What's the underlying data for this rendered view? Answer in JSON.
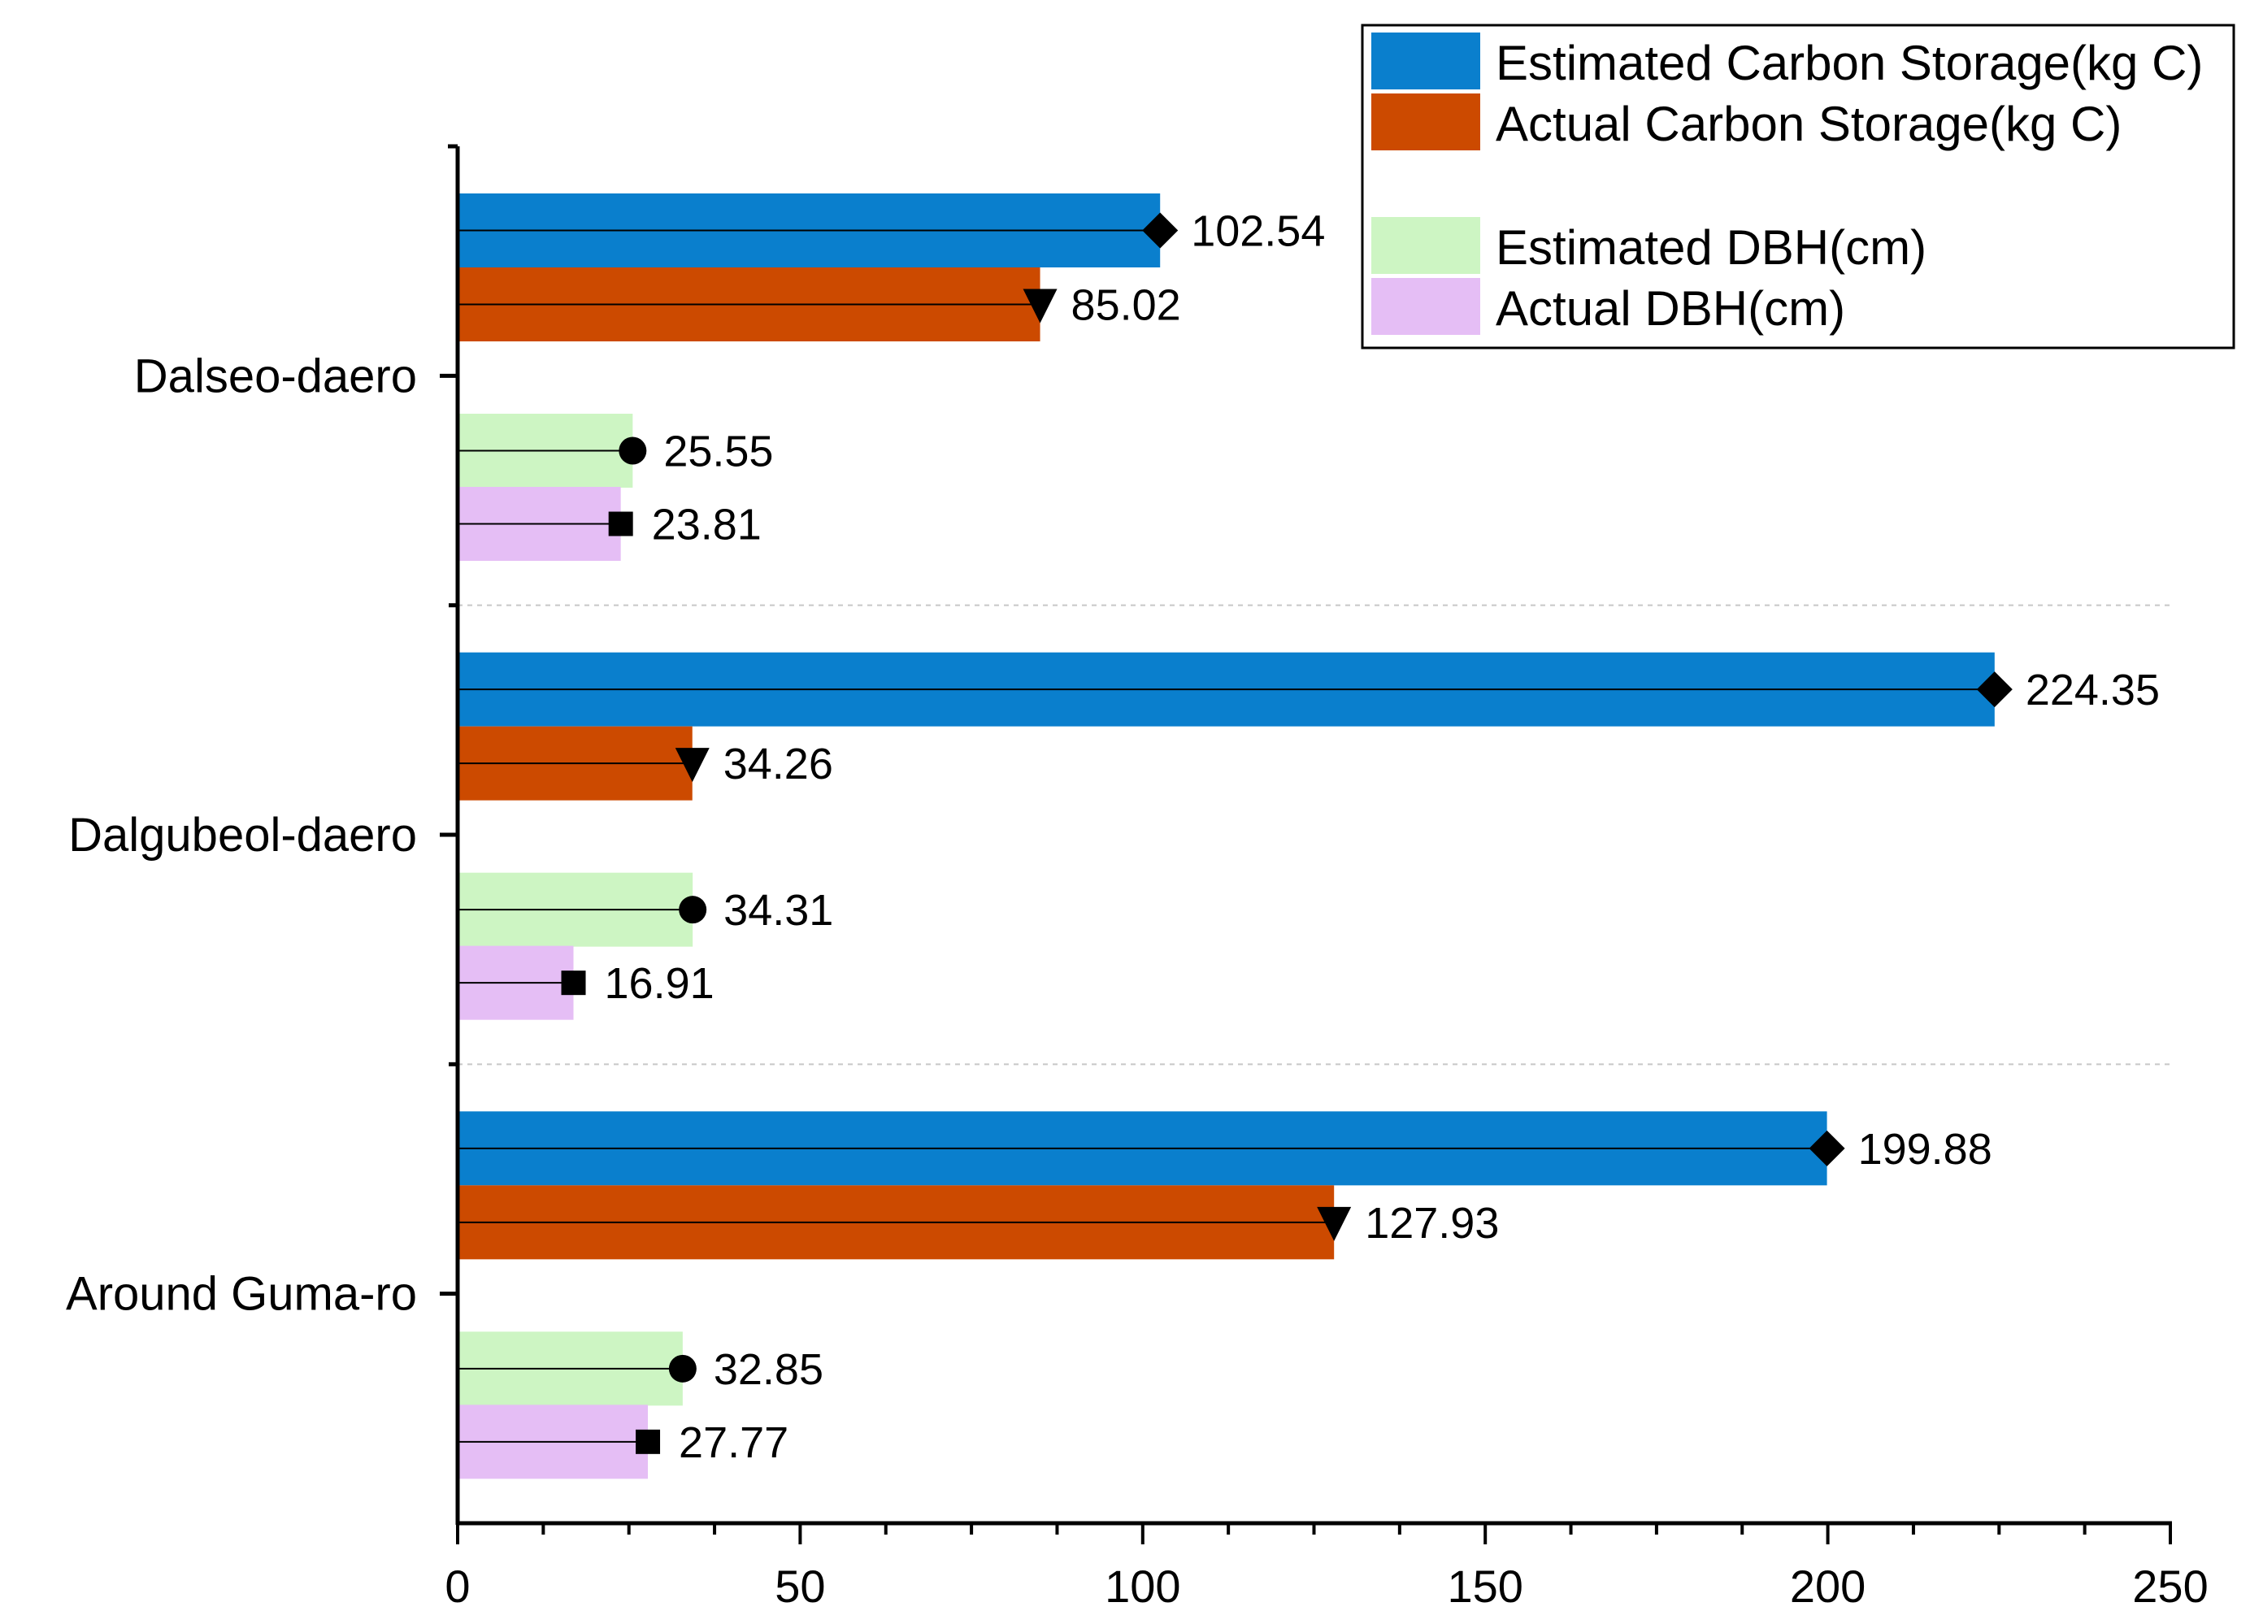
{
  "chart_data": {
    "type": "bar",
    "orientation": "horizontal",
    "title": "",
    "xlabel": "",
    "ylabel": "",
    "xlim": [
      0,
      250
    ],
    "x_ticks": [
      0,
      50,
      100,
      150,
      200,
      250
    ],
    "grid": false,
    "category_separators": "dashed",
    "categories": [
      "Dalseo-daero",
      "Dalgubeol-daero",
      "Around Guma-ro"
    ],
    "series": [
      {
        "name": "Estimated Carbon Storage(kg C)",
        "color": "#0a7fcd",
        "marker": "diamond",
        "values": [
          102.54,
          224.35,
          199.88
        ],
        "labels": [
          "102.54",
          "224.35",
          "199.88"
        ]
      },
      {
        "name": "Actual Carbon Storage(kg C)",
        "color": "#cc4a00",
        "marker": "triangle-down",
        "values": [
          85.02,
          34.26,
          127.93
        ],
        "labels": [
          "85.02",
          "34.26",
          "127.93"
        ]
      },
      {
        "name": "Estimated DBH(cm)",
        "color": "#cdf5c3",
        "marker": "circle",
        "values": [
          25.55,
          34.31,
          32.85
        ],
        "labels": [
          "25.55",
          "34.31",
          "32.85"
        ]
      },
      {
        "name": "Actual DBH(cm)",
        "color": "#e5bef5",
        "marker": "square",
        "values": [
          23.81,
          16.91,
          27.77
        ],
        "labels": [
          "23.81",
          "16.91",
          "27.77"
        ]
      }
    ],
    "legend_position": "top-right"
  }
}
